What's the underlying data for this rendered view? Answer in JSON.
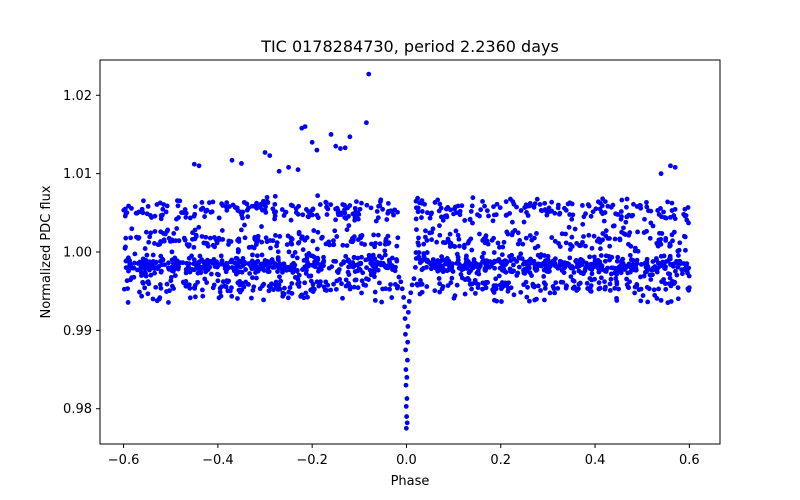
{
  "chart_data": {
    "type": "scatter",
    "title": "TIC 0178284730, period 2.2360 days",
    "xlabel": "Phase",
    "ylabel": "Normalized PDC flux",
    "xlim": [
      -0.65,
      0.665
    ],
    "ylim": [
      0.9755,
      1.0245
    ],
    "xticks": [
      -0.6,
      -0.4,
      -0.2,
      0.0,
      0.2,
      0.4,
      0.6
    ],
    "xtick_labels": [
      "−0.6",
      "−0.4",
      "−0.2",
      "0.0",
      "0.2",
      "0.4",
      "0.6"
    ],
    "yticks": [
      0.98,
      0.99,
      1.0,
      1.01,
      1.02
    ],
    "ytick_labels": [
      "0.98",
      "0.99",
      "1.00",
      "1.01",
      "1.02"
    ],
    "grid": false,
    "marker_color": "#0000ff",
    "series": [
      {
        "name": "PDC flux",
        "baseline": 1.0,
        "transit_depth": 0.0215,
        "phase_range": [
          -0.6,
          0.6
        ],
        "points": [
          [
            -0.08,
            1.0227
          ],
          [
            -0.085,
            1.0165
          ],
          [
            -0.215,
            1.016
          ],
          [
            -0.222,
            1.0158
          ],
          [
            -0.2,
            1.014
          ],
          [
            -0.19,
            1.013
          ],
          [
            -0.16,
            1.015
          ],
          [
            -0.15,
            1.0135
          ],
          [
            -0.14,
            1.0132
          ],
          [
            -0.13,
            1.0133
          ],
          [
            -0.12,
            1.0147
          ],
          [
            -0.3,
            1.0127
          ],
          [
            -0.29,
            1.0123
          ],
          [
            -0.37,
            1.0117
          ],
          [
            -0.35,
            1.0113
          ],
          [
            -0.45,
            1.0112
          ],
          [
            -0.44,
            1.011
          ],
          [
            -0.27,
            1.0103
          ],
          [
            -0.25,
            1.0108
          ],
          [
            -0.23,
            1.0105
          ],
          [
            0.56,
            1.011
          ],
          [
            0.57,
            1.0108
          ],
          [
            0.54,
            1.01
          ],
          [
            -0.0003,
            0.9775
          ],
          [
            0.0003,
            0.979
          ],
          [
            0.0015,
            0.9782
          ],
          [
            -0.0005,
            0.9803
          ],
          [
            0.001,
            0.9813
          ],
          [
            -0.001,
            0.983
          ],
          [
            0.0008,
            0.984
          ],
          [
            -0.0012,
            0.985
          ],
          [
            0.002,
            0.9862
          ],
          [
            -0.0018,
            0.9875
          ],
          [
            0.0025,
            0.9885
          ],
          [
            -0.0022,
            0.9895
          ],
          [
            0.003,
            0.9905
          ],
          [
            -0.003,
            0.9915
          ],
          [
            0.004,
            0.9923
          ],
          [
            -0.004,
            0.993
          ],
          [
            0.006,
            0.9937
          ],
          [
            -0.006,
            0.9942
          ],
          [
            0.009,
            0.9948
          ],
          [
            -0.009,
            0.9953
          ],
          [
            0.012,
            0.9958
          ],
          [
            -0.012,
            0.9962
          ],
          [
            0.016,
            0.9966
          ],
          [
            -0.016,
            0.9968
          ]
        ]
      }
    ]
  }
}
